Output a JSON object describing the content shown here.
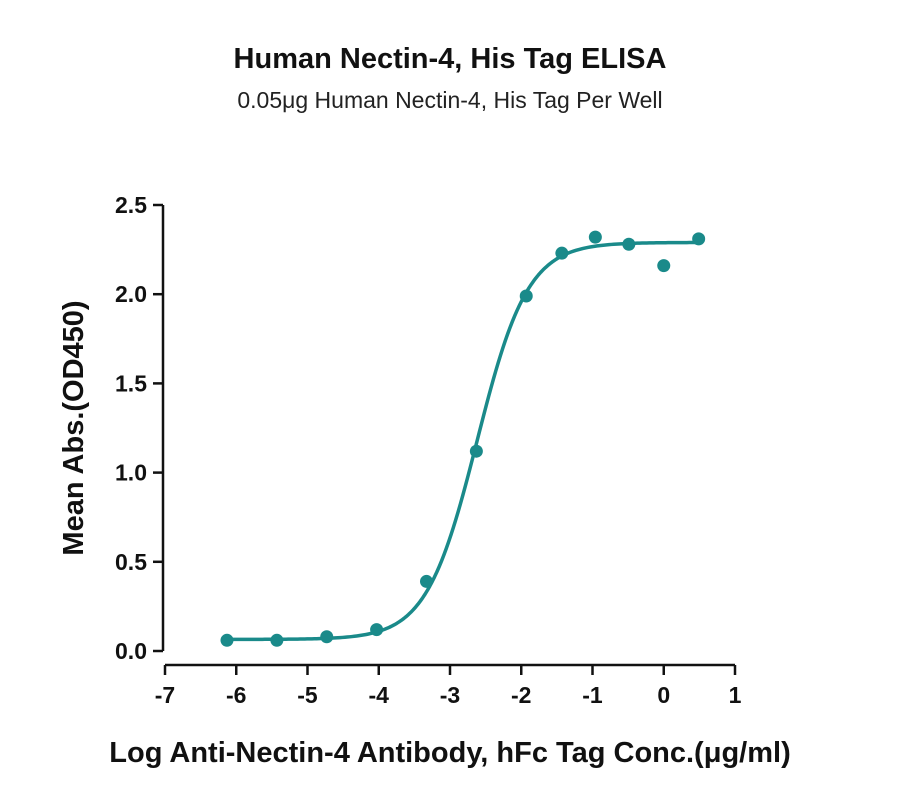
{
  "chart_data": {
    "type": "scatter",
    "title": "Human Nectin-4, His Tag ELISA",
    "subtitle": "0.05μg Human Nectin-4, His Tag Per Well",
    "xlabel": "Log Anti-Nectin-4 Antibody, hFc Tag Conc.(μg/ml)",
    "ylabel": "Mean Abs.(OD450)",
    "xlim": [
      -7,
      1
    ],
    "ylim": [
      0,
      2.5
    ],
    "x_ticks": [
      "-7",
      "-6",
      "-5",
      "-4",
      "-3",
      "-2",
      "-1",
      "0",
      "1"
    ],
    "y_ticks": [
      "0.0",
      "0.5",
      "1.0",
      "1.5",
      "2.0",
      "2.5"
    ],
    "grid": false,
    "color": "#1a8a8a",
    "series": [
      {
        "x": [
          -6.13,
          -5.43,
          -4.73,
          -4.03,
          -3.33,
          -2.63,
          -1.93,
          -1.43,
          -0.96,
          -0.49,
          0.0,
          0.49
        ],
        "y": [
          0.06,
          0.06,
          0.08,
          0.12,
          0.39,
          1.12,
          1.99,
          2.23,
          2.32,
          2.28,
          2.16,
          2.31
        ]
      }
    ],
    "fit_curve": {
      "model": "4PL",
      "bottom": 0.065,
      "top": 2.29,
      "log_ec50": -2.62,
      "hill": 1.22,
      "x_range": [
        -6.13,
        0.49
      ]
    }
  }
}
